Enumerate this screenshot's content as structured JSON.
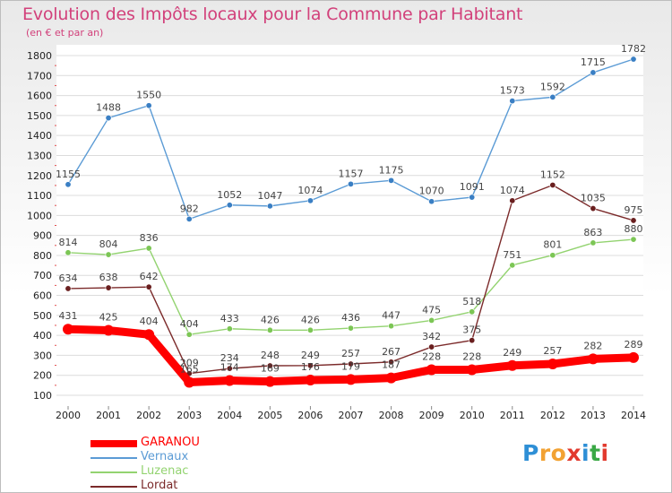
{
  "title": "Evolution des Impôts locaux pour la Commune par Habitant",
  "subtitle": "(en € et par an)",
  "logo": {
    "letters": [
      "P",
      "r",
      "o",
      "x",
      "i",
      "t",
      "i"
    ],
    "colors": [
      "#2e8fd6",
      "#f2a233",
      "#f2a233",
      "#e23a2e",
      "#2e8fd6",
      "#3aa845",
      "#e23a2e"
    ]
  },
  "chart_data": {
    "type": "line",
    "title": "Evolution des Impôts locaux pour la Commune par Habitant",
    "ylabel": "(en € et par an)",
    "xlabel": "",
    "x": [
      "2000",
      "2001",
      "2002",
      "2003",
      "2004",
      "2005",
      "2006",
      "2007",
      "2008",
      "2009",
      "2010",
      "2011",
      "2012",
      "2013",
      "2014"
    ],
    "ylim": [
      100,
      1800
    ],
    "yticks": [
      100,
      200,
      300,
      400,
      500,
      600,
      700,
      800,
      900,
      1000,
      1100,
      1200,
      1300,
      1400,
      1500,
      1600,
      1700,
      1800
    ],
    "grid": "horizontal",
    "legend_position": "bottom-left",
    "series": [
      {
        "name": "Vernaux",
        "color": "#5b9bd5",
        "marker": "#3a7fc4",
        "values": [
          1155,
          1488,
          1550,
          982,
          1052,
          1047,
          1074,
          1157,
          1175,
          1070,
          1091,
          1573,
          1592,
          1715,
          1782
        ]
      },
      {
        "name": "Luzenac",
        "color": "#93d370",
        "marker": "#7cc655",
        "values": [
          814,
          804,
          836,
          404,
          433,
          426,
          426,
          436,
          447,
          475,
          518,
          751,
          801,
          863,
          880
        ]
      },
      {
        "name": "Lordat",
        "color": "#7b2a2a",
        "marker": "#6a1f1f",
        "values": [
          634,
          638,
          642,
          209,
          234,
          248,
          249,
          257,
          267,
          342,
          375,
          1074,
          1152,
          1035,
          975
        ]
      },
      {
        "name": "GARANOU",
        "color": "#ff0000",
        "marker": "#ff0000",
        "values": [
          431,
          425,
          404,
          165,
          174,
          169,
          176,
          179,
          187,
          228,
          228,
          249,
          257,
          282,
          289
        ]
      }
    ]
  }
}
